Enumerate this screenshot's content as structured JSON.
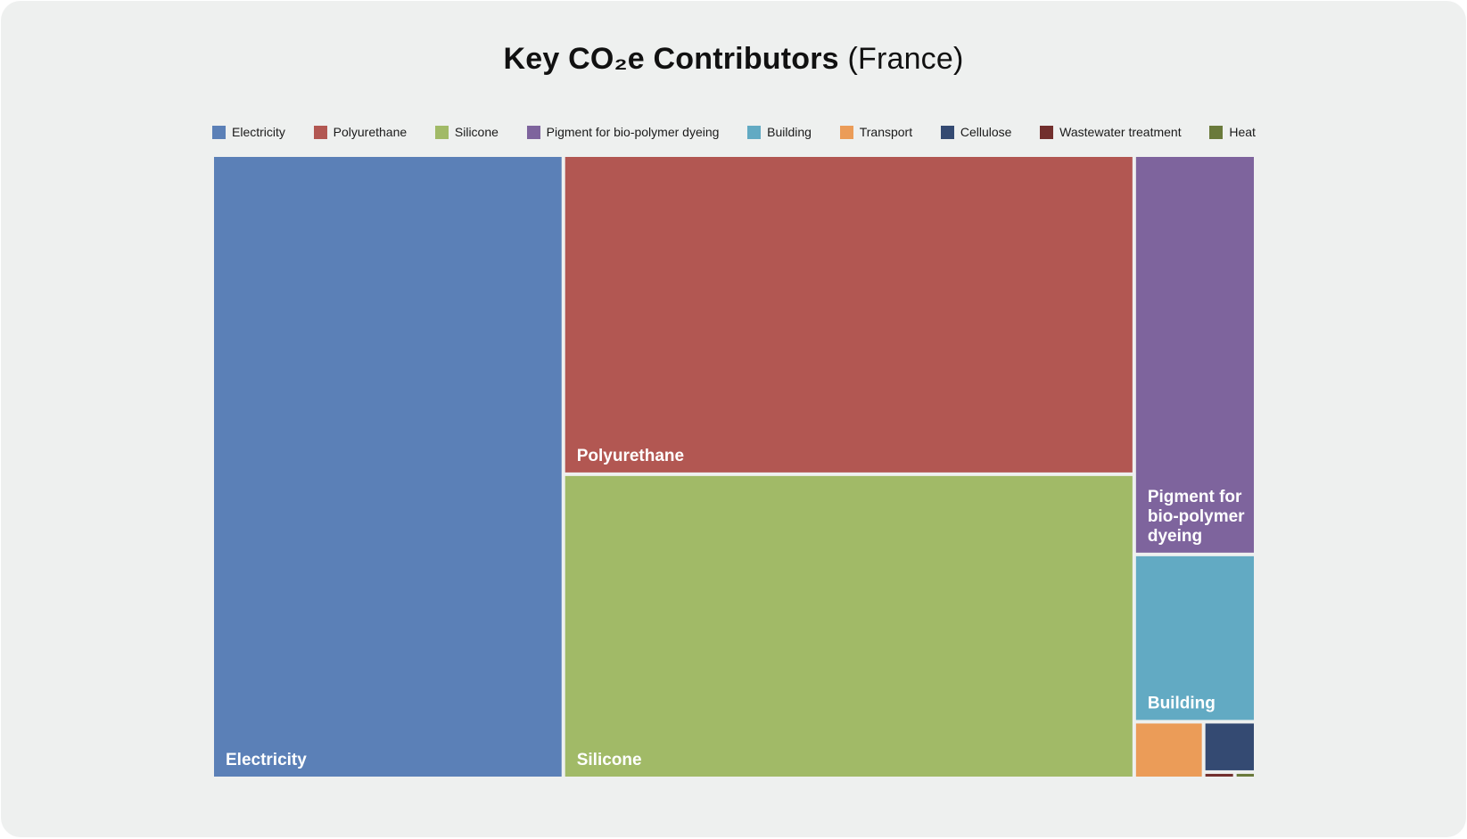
{
  "title": {
    "main": "Key CO₂e Contributors",
    "sub": "(France)"
  },
  "legend": [
    {
      "label": "Electricity",
      "color": "#5b80b7"
    },
    {
      "label": "Polyurethane",
      "color": "#b25752"
    },
    {
      "label": "Silicone",
      "color": "#a1ba67"
    },
    {
      "label": "Pigment for bio-polymer dyeing",
      "color": "#7e649d"
    },
    {
      "label": "Building",
      "color": "#62aac3"
    },
    {
      "label": "Transport",
      "color": "#eb9c58"
    },
    {
      "label": "Cellulose",
      "color": "#344a72"
    },
    {
      "label": "Wastewater treatment",
      "color": "#722f2d"
    },
    {
      "label": "Heat",
      "color": "#6a7a3b"
    }
  ],
  "chart_data": {
    "type": "treemap",
    "title": "Key CO₂e Contributors (France)",
    "unit": "share of total (%)",
    "legend_position": "top",
    "items": [
      {
        "name": "Electricity",
        "value": 33.4,
        "label": "Electricity",
        "color": "#5b80b7"
      },
      {
        "name": "Polyurethane",
        "value": 27.8,
        "label": "Polyurethane",
        "color": "#b25752"
      },
      {
        "name": "Silicone",
        "value": 26.5,
        "label": "Silicone",
        "color": "#a1ba67"
      },
      {
        "name": "Pigment for bio-polymer dyeing",
        "value": 7.4,
        "label": "Pigment for bio-polymer dyeing",
        "color": "#7e649d"
      },
      {
        "name": "Building",
        "value": 3.1,
        "label": "Building",
        "color": "#62aac3"
      },
      {
        "name": "Transport",
        "value": 0.6,
        "label": "",
        "color": "#eb9c58"
      },
      {
        "name": "Cellulose",
        "value": 0.4,
        "label": "",
        "color": "#344a72"
      },
      {
        "name": "Wastewater treatment",
        "value": 0.03,
        "label": "",
        "color": "#722f2d"
      },
      {
        "name": "Heat",
        "value": 0.02,
        "label": "",
        "color": "#6a7a3b"
      }
    ]
  }
}
